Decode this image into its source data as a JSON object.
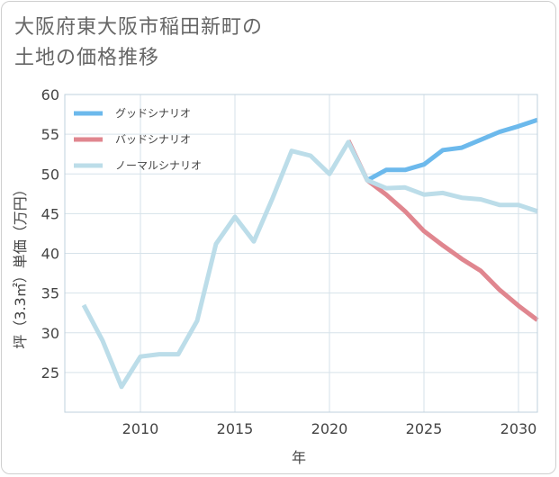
{
  "title_lines": [
    "大阪府東大阪市稲田新町の",
    "土地の価格推移"
  ],
  "chart_data": {
    "type": "line",
    "xlabel": "年",
    "ylabel": "坪（3.3㎡）単価（万円）",
    "xlim": [
      2006,
      2031
    ],
    "ylim": [
      20,
      60
    ],
    "x_ticks": [
      2010,
      2015,
      2020,
      2025,
      2030
    ],
    "y_ticks": [
      25,
      30,
      35,
      40,
      45,
      50,
      55,
      60
    ],
    "grid": true,
    "legend_position": "top-left",
    "series": [
      {
        "name": "グッドシナリオ",
        "color": "#6cb9ec",
        "x": [
          2022,
          2023,
          2024,
          2025,
          2026,
          2027,
          2028,
          2029,
          2030,
          2031
        ],
        "values": [
          49.2,
          50.5,
          50.5,
          51.2,
          53.0,
          53.3,
          54.3,
          55.3,
          56.0,
          56.8
        ]
      },
      {
        "name": "バッドシナリオ",
        "color": "#e0868f",
        "x": [
          2021,
          2022,
          2023,
          2024,
          2025,
          2026,
          2027,
          2028,
          2029,
          2030,
          2031
        ],
        "values": [
          54.2,
          49.2,
          47.4,
          45.3,
          42.8,
          41.0,
          39.3,
          37.8,
          35.4,
          33.4,
          31.6
        ]
      },
      {
        "name": "ノーマルシナリオ",
        "color": "#bcdde9",
        "x": [
          2007,
          2008,
          2009,
          2010,
          2011,
          2012,
          2013,
          2014,
          2015,
          2016,
          2017,
          2018,
          2019,
          2020,
          2021,
          2022,
          2023,
          2024,
          2025,
          2026,
          2027,
          2028,
          2029,
          2030,
          2031
        ],
        "values": [
          33.5,
          29.0,
          23.2,
          27.0,
          27.3,
          27.3,
          31.5,
          41.2,
          44.6,
          41.5,
          47.0,
          52.9,
          52.3,
          50.0,
          54.0,
          49.2,
          48.2,
          48.3,
          47.4,
          47.6,
          47.0,
          46.8,
          46.1,
          46.1,
          45.3
        ]
      }
    ]
  }
}
